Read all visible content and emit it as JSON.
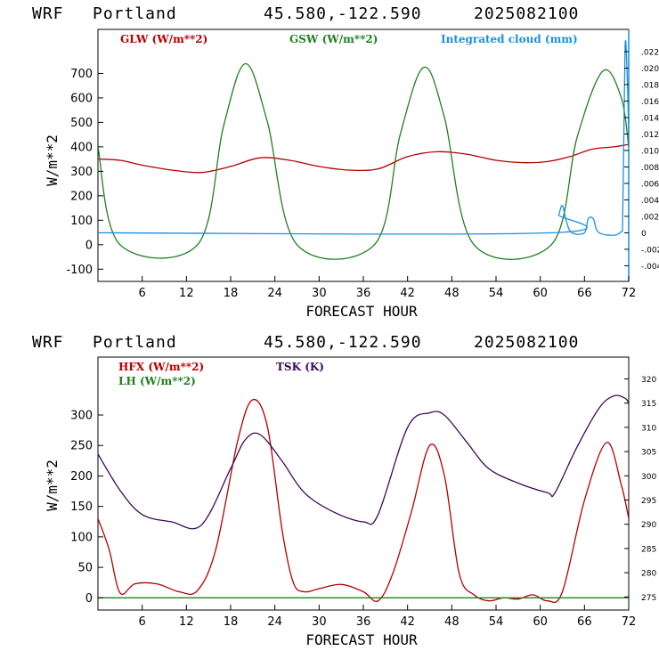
{
  "chart_data": [
    {
      "type": "line",
      "header": {
        "model": "WRF",
        "location": "Portland",
        "coords": "45.580,-122.590",
        "init": "2025082100"
      },
      "xlabel": "FORECAST HOUR",
      "ylabel": "W/m**2",
      "xlim": [
        0,
        72
      ],
      "x_ticks": [
        "6",
        "12",
        "18",
        "24",
        "30",
        "36",
        "42",
        "48",
        "54",
        "60",
        "66",
        "72"
      ],
      "ylim": [
        -150,
        880
      ],
      "y_ticks": [
        "700",
        "600",
        "500",
        "400",
        "300",
        "200",
        "100",
        "0",
        "-100"
      ],
      "y2lim": [
        -0.0059,
        0.0247
      ],
      "y2_ticks": [
        ".022",
        ".020",
        ".018",
        ".016",
        ".014",
        ".012",
        ".010",
        ".008",
        ".006",
        ".004",
        ".002",
        "0",
        "-.002",
        "-.004"
      ],
      "series": [
        {
          "name": "GLW (W/m**2)",
          "color": "#b40000",
          "axis": "left",
          "x": [
            0,
            3,
            6,
            10,
            14,
            18,
            22,
            26,
            30,
            34,
            38,
            42,
            46,
            50,
            54,
            58,
            61,
            64,
            67,
            70,
            72
          ],
          "y": [
            350,
            345,
            325,
            305,
            295,
            320,
            355,
            345,
            320,
            305,
            310,
            360,
            380,
            370,
            345,
            335,
            340,
            360,
            390,
            400,
            410
          ]
        },
        {
          "name": "GSW (W/m**2)",
          "color": "#208020",
          "axis": "left",
          "x": [
            0,
            3,
            13.5,
            17,
            20,
            23,
            27,
            37.5,
            41,
            44.2,
            47,
            51,
            61.5,
            65,
            68.5,
            71,
            72
          ],
          "y": [
            400,
            0,
            0,
            480,
            740,
            500,
            0,
            0,
            450,
            725,
            520,
            0,
            0,
            440,
            710,
            600,
            400
          ]
        },
        {
          "name": "Integrated cloud (mm)",
          "color": "#1a8fe0",
          "axis": "right",
          "x": [
            0,
            61.5,
            62.5,
            63,
            63.6,
            64.3,
            66,
            66.5,
            67.2,
            68,
            70.8,
            71.2,
            71.5,
            71.8,
            72
          ],
          "y": [
            0,
            0,
            0.0022,
            0.0033,
            0.0012,
            0,
            0,
            0.0017,
            0.0017,
            0,
            0,
            0.003,
            0.0225,
            0.019,
            0.012
          ]
        }
      ]
    },
    {
      "type": "line",
      "header": {
        "model": "WRF",
        "location": "Portland",
        "coords": "45.580,-122.590",
        "init": "2025082100"
      },
      "xlabel": "FORECAST HOUR",
      "ylabel": "W/m**2",
      "xlim": [
        0,
        72
      ],
      "x_ticks": [
        "6",
        "12",
        "18",
        "24",
        "30",
        "36",
        "42",
        "48",
        "54",
        "60",
        "66",
        "72"
      ],
      "ylim": [
        -20,
        395
      ],
      "y_ticks": [
        "300",
        "250",
        "200",
        "150",
        "100",
        "50",
        "0"
      ],
      "y2lim": [
        272.3,
        324.5
      ],
      "y2_ticks": [
        "320",
        "315",
        "310",
        "305",
        "300",
        "295",
        "290",
        "285",
        "280",
        "275"
      ],
      "series": [
        {
          "name": "HFX (W/m**2)",
          "color": "#b40000",
          "axis": "left",
          "x": [
            0,
            1.5,
            3,
            5,
            8,
            11,
            13.5,
            16,
            19,
            21,
            23,
            25,
            26.5,
            28,
            30,
            33,
            36,
            38,
            40,
            42.5,
            45,
            47,
            49,
            51,
            53,
            55,
            57,
            59,
            61,
            63,
            66,
            69,
            71,
            72
          ],
          "y": [
            130,
            80,
            8,
            23,
            23,
            10,
            12,
            80,
            260,
            325,
            280,
            110,
            25,
            10,
            15,
            22,
            10,
            -5,
            40,
            140,
            250,
            200,
            40,
            5,
            -5,
            0,
            -2,
            5,
            -5,
            10,
            160,
            255,
            185,
            130
          ]
        },
        {
          "name": "LH (W/m**2)",
          "color": "#208020",
          "axis": "left",
          "x": [
            0,
            72
          ],
          "y": [
            0,
            0
          ]
        },
        {
          "name": "TSK (K)",
          "color": "#3a0a5a",
          "axis": "right",
          "x": [
            0,
            3,
            6,
            10,
            14,
            18,
            20,
            22,
            25,
            28,
            32,
            36,
            38,
            42,
            45,
            47,
            50,
            53,
            57,
            61,
            62,
            65,
            68,
            70,
            71.5,
            72
          ],
          "y": [
            304.5,
            297,
            292,
            290.5,
            289.8,
            301.5,
            307.5,
            308.5,
            303,
            296.5,
            292.5,
            290.5,
            292,
            310,
            313,
            312.5,
            307,
            301.5,
            298.5,
            296.5,
            296.5,
            306,
            314,
            316.5,
            316,
            315
          ]
        }
      ]
    }
  ]
}
